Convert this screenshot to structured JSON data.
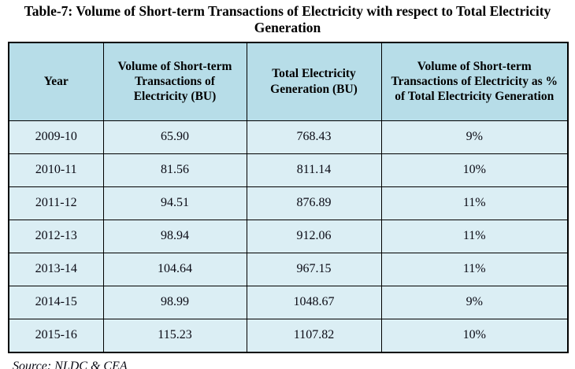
{
  "title": "Table-7: Volume of Short-term Transactions of Electricity with respect to Total Electricity Generation",
  "source_note": "Source: NLDC & CEA",
  "colors": {
    "header_bg": "#b7dde8",
    "row_bg": "#dbeef4",
    "border": "#000000",
    "text": "#0a0a14"
  },
  "chart_data": {
    "type": "table",
    "title": "Table-7: Volume of Short-term Transactions of Electricity with respect to Total Electricity Generation",
    "columns": [
      "Year",
      "Volume of Short-term Transactions of Electricity (BU)",
      "Total Electricity Generation (BU)",
      "Volume of Short-term Transactions of Electricity as % of Total Electricity Generation"
    ],
    "rows": [
      [
        "2009-10",
        "65.90",
        "768.43",
        "9%"
      ],
      [
        "2010-11",
        "81.56",
        "811.14",
        "10%"
      ],
      [
        "2011-12",
        "94.51",
        "876.89",
        "11%"
      ],
      [
        "2012-13",
        "98.94",
        "912.06",
        "11%"
      ],
      [
        "2013-14",
        "104.64",
        "967.15",
        "11%"
      ],
      [
        "2014-15",
        "98.99",
        "1048.67",
        "9%"
      ],
      [
        "2015-16",
        "115.23",
        "1107.82",
        "10%"
      ]
    ],
    "source": "Source: NLDC & CEA",
    "layout": {
      "header_background": "#b7dde8",
      "row_background": "#dbeef4",
      "grid": true
    }
  }
}
